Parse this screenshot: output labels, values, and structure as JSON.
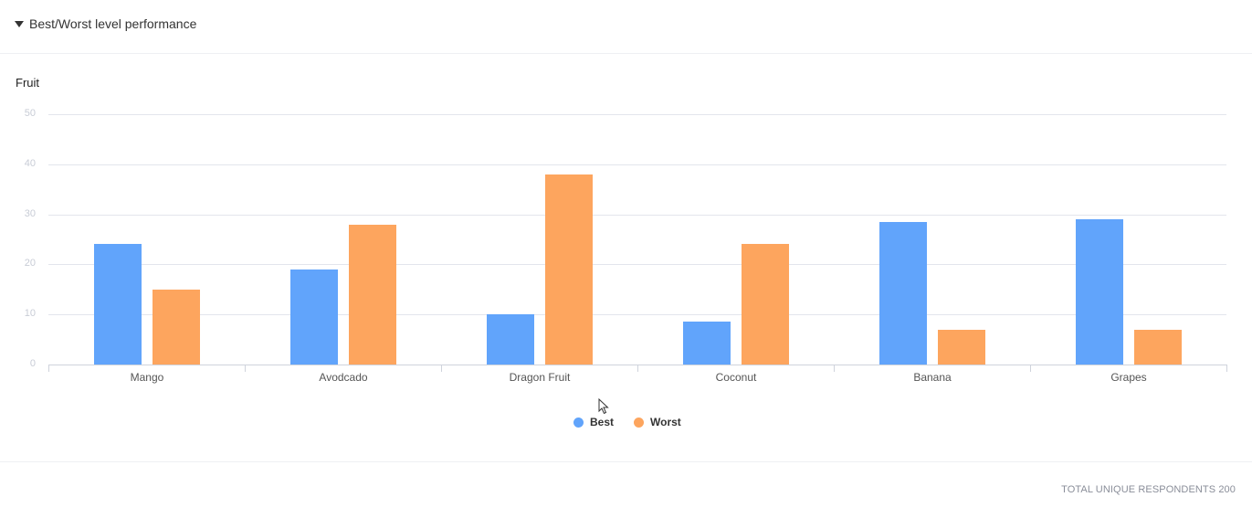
{
  "header": {
    "title": "Best/Worst level performance",
    "toggle_icon": "caret-down-icon"
  },
  "chart": {
    "y_axis_title": "Fruit"
  },
  "legend": [
    {
      "label": "Best",
      "color": "#61a4fb"
    },
    {
      "label": "Worst",
      "color": "#fda55e"
    }
  ],
  "footer": {
    "summary": "TOTAL UNIQUE RESPONDENTS 200"
  },
  "chart_data": {
    "type": "bar",
    "title": "Best/Worst level performance",
    "xlabel": "",
    "ylabel": "Fruit",
    "categories": [
      "Mango",
      "Avodcado",
      "Dragon Fruit",
      "Coconut",
      "Banana",
      "Grapes"
    ],
    "series": [
      {
        "name": "Best",
        "color": "#61a4fb",
        "values": [
          24,
          19,
          10,
          8.5,
          28.5,
          29
        ]
      },
      {
        "name": "Worst",
        "color": "#fda55e",
        "values": [
          15,
          28,
          38,
          24,
          7,
          7
        ]
      }
    ],
    "yticks": [
      0,
      10,
      20,
      30,
      40,
      50
    ],
    "ylim": [
      0,
      50
    ],
    "grid": true,
    "legend_position": "bottom"
  }
}
